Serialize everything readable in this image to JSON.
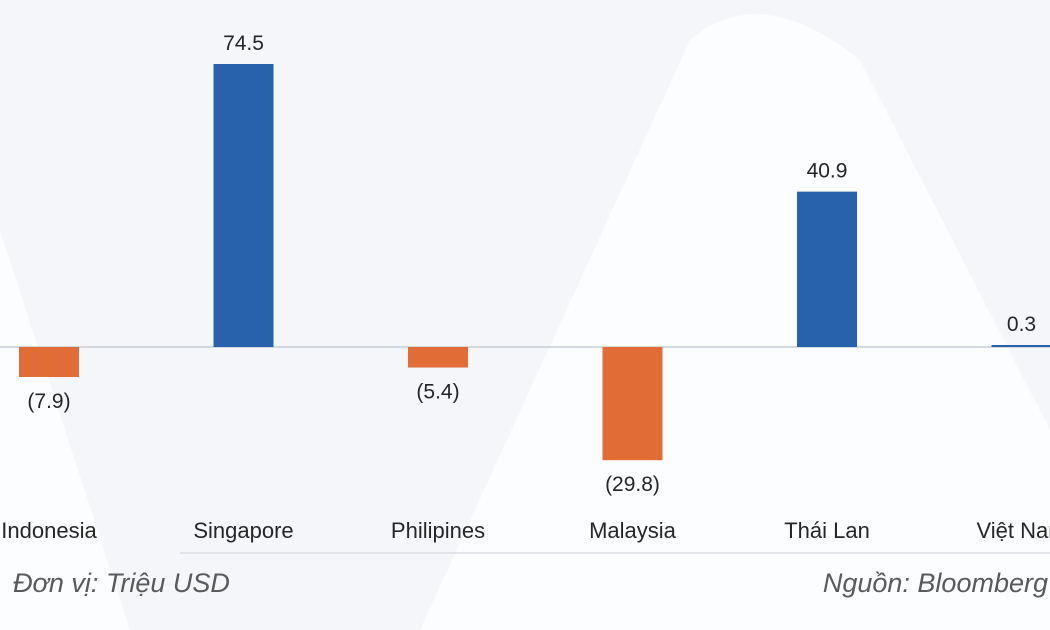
{
  "chart_data": {
    "type": "bar",
    "categories": [
      "Indonesia",
      "Singapore",
      "Philipines",
      "Malaysia",
      "Thái Lan",
      "Việt Nam"
    ],
    "values": [
      -7.9,
      74.5,
      -5.4,
      -29.8,
      40.9,
      0.3
    ],
    "value_labels": [
      "(7.9)",
      "74.5",
      "(5.4)",
      "(29.8)",
      "40.9",
      "0.3"
    ],
    "ylim": [
      -40,
      80
    ],
    "grid": false,
    "legend": "none",
    "title": "",
    "xlabel": "",
    "ylabel": ""
  },
  "colors": {
    "positive": "#2862ad",
    "negative": "#e26c36",
    "text": "#262626",
    "footer_text": "#5a5a5a",
    "background": "#f4f6fa",
    "baseline": "#c8cdd6"
  },
  "footer": {
    "unit": "Đơn vị: Triệu USD",
    "source": "Nguồn: Bloomberg"
  }
}
